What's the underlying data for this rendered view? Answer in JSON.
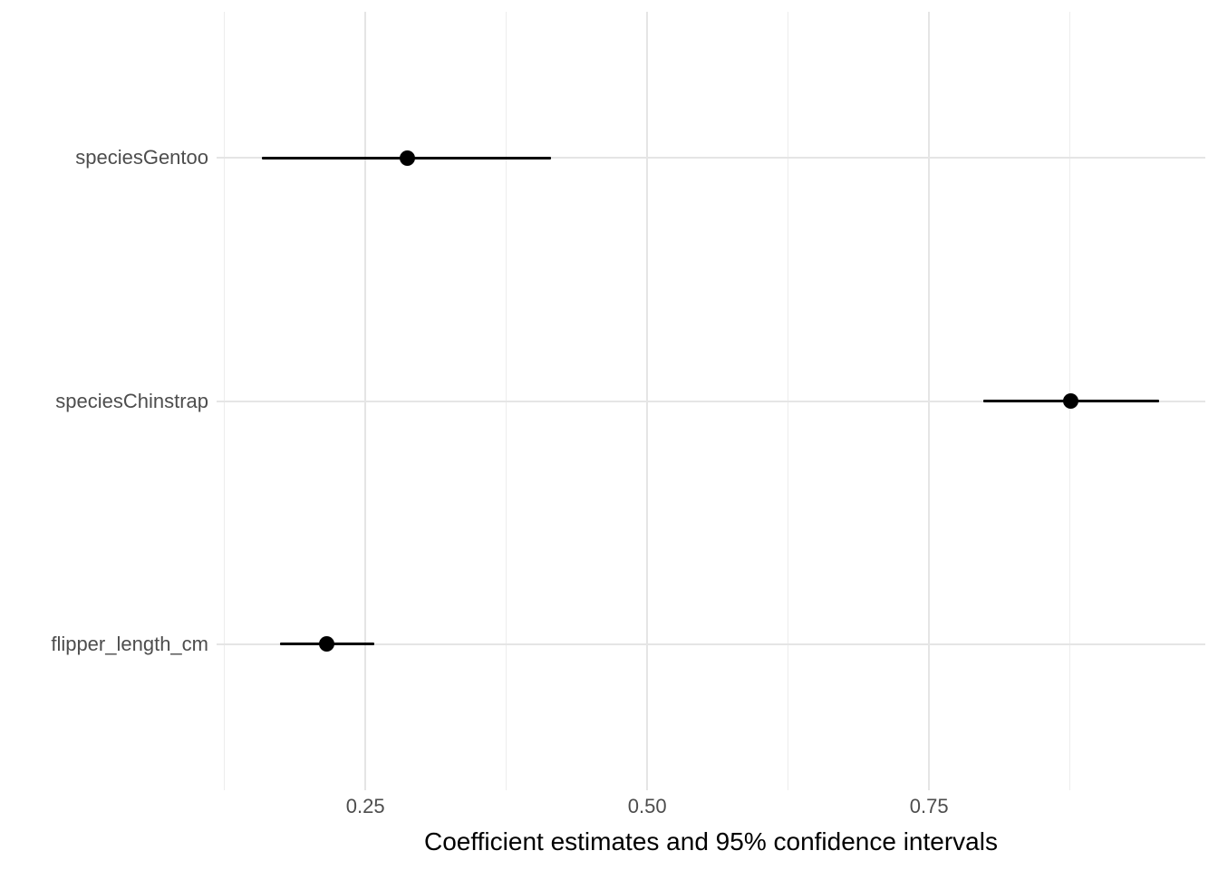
{
  "figure": {
    "background": "#FFFFFF"
  },
  "chart_data": {
    "type": "pointrange",
    "orientation": "horizontal",
    "title": "",
    "xlabel": "Coefficient estimates and 95% confidence intervals",
    "ylabel": "",
    "xlim": [
      0.118,
      0.995
    ],
    "x_major_ticks": [
      0.25,
      0.5,
      0.75
    ],
    "x_major_tick_labels": [
      "0.25",
      "0.50",
      "0.75"
    ],
    "x_minor_ticks": [
      0.125,
      0.375,
      0.625,
      0.875
    ],
    "grid": "major+minor",
    "legend": "none",
    "categories": [
      "speciesGentoo",
      "speciesChinstrap",
      "flipper_length_cm"
    ],
    "series": [
      {
        "name": "speciesGentoo",
        "estimate": 0.287,
        "ci_low": 0.158,
        "ci_high": 0.415
      },
      {
        "name": "speciesChinstrap",
        "estimate": 0.876,
        "ci_low": 0.798,
        "ci_high": 0.954
      },
      {
        "name": "flipper_length_cm",
        "estimate": 0.216,
        "ci_low": 0.174,
        "ci_high": 0.258
      }
    ],
    "colors": {
      "point": "#000000",
      "errorbar": "#000000",
      "grid_major": "#E5E5E5",
      "grid_minor": "#EDEDED",
      "axis_text": "#4D4D4D",
      "axis_title": "#000000",
      "background": "#FFFFFF"
    }
  }
}
